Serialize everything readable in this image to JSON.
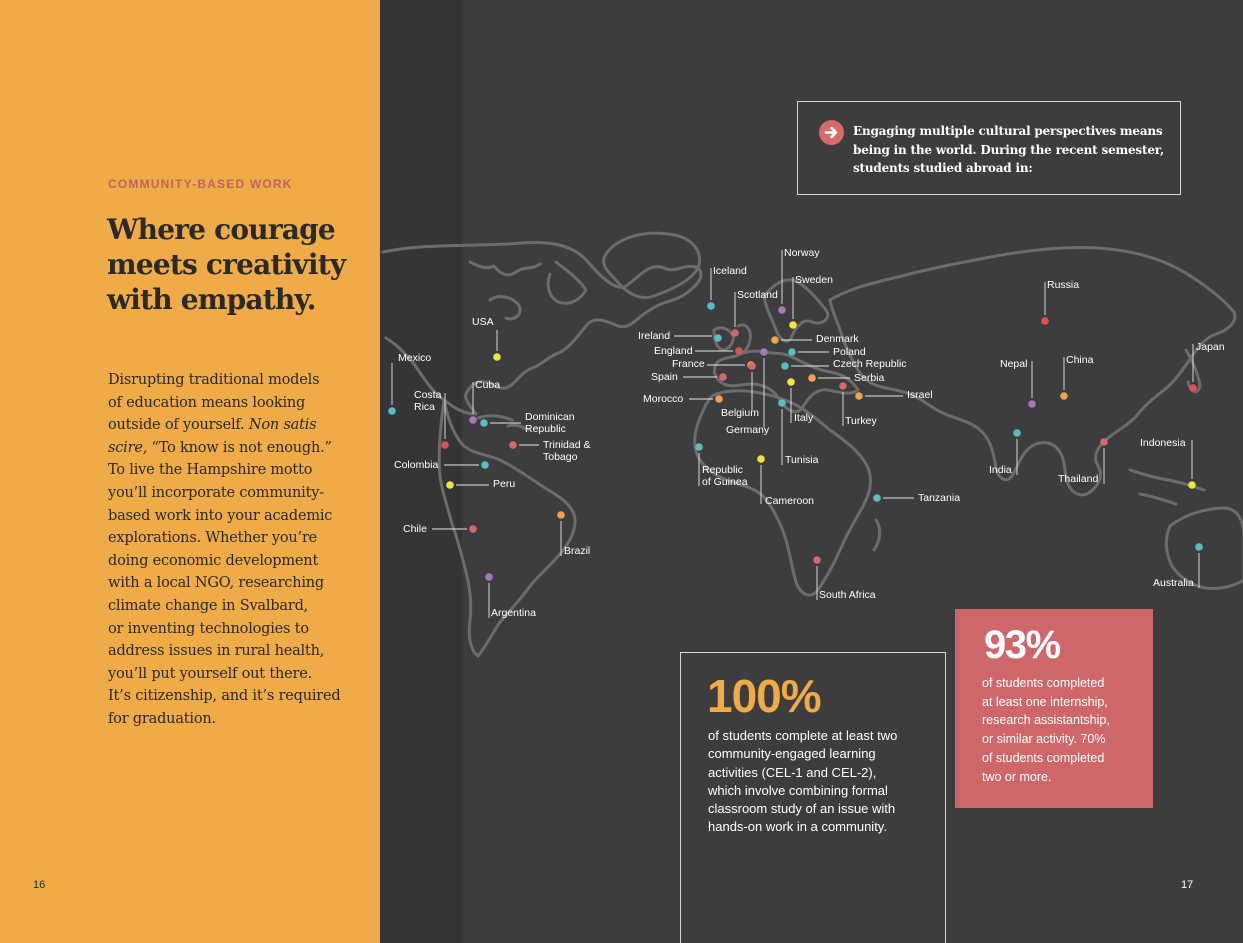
{
  "left_page": {
    "eyebrow": "COMMUNITY-BASED WORK",
    "headline_lines": [
      "Where courage",
      "meets creativity",
      "with empathy."
    ],
    "body_lines": [
      {
        "text": "Disrupting traditional models"
      },
      {
        "text": "of education means looking"
      },
      {
        "text": "outside of yourself. ",
        "italic": "Non satis"
      },
      {
        "italic": "scire",
        "text": ", “To know is not enough.”"
      },
      {
        "text": "To live the Hampshire motto"
      },
      {
        "text": "you’ll incorporate community-"
      },
      {
        "text": "based work into your academic"
      },
      {
        "text": "explorations. Whether you’re"
      },
      {
        "text": "doing economic development"
      },
      {
        "text": "with a local NGO, researching"
      },
      {
        "text": "climate change in Svalbard,"
      },
      {
        "text": "or inventing technologies to"
      },
      {
        "text": "address issues in rural health,"
      },
      {
        "text": "you’ll put yourself out there."
      },
      {
        "text": "It’s citizenship, and it’s required"
      },
      {
        "text": "for graduation."
      }
    ],
    "page_number": "16"
  },
  "callout": {
    "icon": "arrow-right-icon",
    "lines": [
      "Engaging multiple cultural perspectives means",
      "being in the world. During the recent semester,",
      "students studied abroad in:"
    ]
  },
  "colors": {
    "teal": "#5bbcc0",
    "purple": "#a57bb1",
    "red": "#d9525a",
    "orange": "#eea24a",
    "yellow": "#efe73e",
    "coral": "#d4686b"
  },
  "countries": [
    {
      "name": "Mexico",
      "color": "teal"
    },
    {
      "name": "USA",
      "color": "yellow"
    },
    {
      "name": "Costa Rica",
      "color": "red"
    },
    {
      "name": "Cuba",
      "color": "purple"
    },
    {
      "name": "Dominican Republic",
      "color": "teal"
    },
    {
      "name": "Trinidad & Tobago",
      "color": "coral"
    },
    {
      "name": "Colombia",
      "color": "teal"
    },
    {
      "name": "Peru",
      "color": "yellow"
    },
    {
      "name": "Chile",
      "color": "coral"
    },
    {
      "name": "Brazil",
      "color": "orange"
    },
    {
      "name": "Argentina",
      "color": "purple"
    },
    {
      "name": "Iceland",
      "color": "teal"
    },
    {
      "name": "Norway",
      "color": "purple"
    },
    {
      "name": "Sweden",
      "color": "yellow"
    },
    {
      "name": "Scotland",
      "color": "coral"
    },
    {
      "name": "Ireland",
      "color": "teal"
    },
    {
      "name": "England",
      "color": "red"
    },
    {
      "name": "Denmark",
      "color": "orange"
    },
    {
      "name": "Poland",
      "color": "teal"
    },
    {
      "name": "France",
      "color": "orange"
    },
    {
      "name": "Czech Republic",
      "color": "teal"
    },
    {
      "name": "Spain",
      "color": "coral"
    },
    {
      "name": "Serbia",
      "color": "orange"
    },
    {
      "name": "Morocco",
      "color": "orange"
    },
    {
      "name": "Israel",
      "color": "orange"
    },
    {
      "name": "Belgium",
      "color": "coral"
    },
    {
      "name": "Germany",
      "color": "purple"
    },
    {
      "name": "Italy",
      "color": "yellow"
    },
    {
      "name": "Turkey",
      "color": "coral"
    },
    {
      "name": "Republic of Guinea",
      "color": "teal"
    },
    {
      "name": "Tunisia",
      "color": "teal"
    },
    {
      "name": "Cameroon",
      "color": "yellow"
    },
    {
      "name": "Tanzania",
      "color": "teal"
    },
    {
      "name": "South Africa",
      "color": "coral"
    },
    {
      "name": "Russia",
      "color": "red"
    },
    {
      "name": "Nepal",
      "color": "purple"
    },
    {
      "name": "China",
      "color": "orange"
    },
    {
      "name": "Japan",
      "color": "red"
    },
    {
      "name": "India",
      "color": "teal"
    },
    {
      "name": "Thailand",
      "color": "coral"
    },
    {
      "name": "Indonesia",
      "color": "yellow"
    },
    {
      "name": "Australia",
      "color": "teal"
    }
  ],
  "stats": [
    {
      "value": "100%",
      "lines": [
        "of students complete at least two",
        "community-engaged learning",
        "activities (CEL-1 and CEL-2),",
        "which involve combining formal",
        "classroom study of an issue with",
        "hands-on work in a community."
      ]
    },
    {
      "value": "93%",
      "lines": [
        "of students completed",
        "at least one internship,",
        "research assistantship,",
        "or similar activity. 70%",
        "of students completed",
        "two or more."
      ]
    }
  ],
  "page_number_right": "17"
}
